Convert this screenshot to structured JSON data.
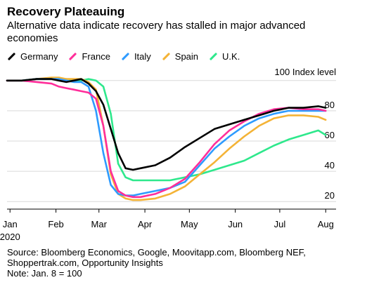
{
  "header": {
    "title": "Recovery Plateauing",
    "subtitle": "Alternative data indicate recovery has stalled in major advanced economies"
  },
  "notes": {
    "source_line1": "Source: Bloomberg Economics, Google, Moovitapp.com, Bloomberg NEF,",
    "source_line2": "Shoppertrak.com, Opportunity Insights",
    "note": "Note: Jan. 8 = 100"
  },
  "chart_data": {
    "type": "line",
    "title": "Recovery Plateauing",
    "y_unit_label": "100 Index level",
    "x_tick_labels": [
      "Jan",
      "Feb",
      "Mar",
      "Apr",
      "May",
      "Jun",
      "Jul",
      "Aug"
    ],
    "x_year_label": "2020",
    "x_range_days": [
      0,
      222
    ],
    "y_ticks": [
      20,
      40,
      60,
      80
    ],
    "ylim": [
      15,
      105
    ],
    "grid": true,
    "legend_position": "top-left",
    "series": [
      {
        "name": "Germany",
        "color": "#000000",
        "x": [
          0,
          10,
          20,
          30,
          35,
          40,
          45,
          50,
          55,
          60,
          65,
          70,
          75,
          80,
          85,
          90,
          100,
          110,
          120,
          130,
          140,
          150,
          160,
          170,
          180,
          190,
          200,
          210,
          215
        ],
        "y": [
          100,
          100,
          101,
          101,
          100,
          99,
          100,
          101,
          98,
          93,
          84,
          68,
          52,
          42,
          41,
          42,
          44,
          49,
          56,
          62,
          68,
          71,
          74,
          77,
          80,
          82,
          82,
          83,
          82
        ]
      },
      {
        "name": "France",
        "color": "#ff2e9a",
        "x": [
          0,
          10,
          20,
          30,
          35,
          40,
          45,
          50,
          55,
          60,
          65,
          70,
          75,
          80,
          85,
          90,
          100,
          110,
          120,
          130,
          140,
          150,
          160,
          170,
          180,
          190,
          200,
          210,
          215
        ],
        "y": [
          100,
          100,
          99,
          98,
          96,
          95,
          94,
          93,
          92,
          88,
          70,
          40,
          27,
          24,
          23,
          23,
          25,
          29,
          35,
          46,
          58,
          67,
          73,
          78,
          81,
          82,
          81,
          81,
          80
        ]
      },
      {
        "name": "Italy",
        "color": "#2e9bff",
        "x": [
          0,
          10,
          20,
          30,
          35,
          40,
          45,
          50,
          55,
          60,
          65,
          70,
          75,
          80,
          85,
          90,
          100,
          110,
          120,
          130,
          140,
          150,
          160,
          170,
          180,
          190,
          200,
          210,
          215
        ],
        "y": [
          100,
          100,
          101,
          101,
          101,
          100,
          99,
          99,
          96,
          80,
          52,
          31,
          25,
          24,
          24,
          25,
          27,
          29,
          33,
          44,
          55,
          63,
          70,
          75,
          78,
          80,
          80,
          80,
          80
        ]
      },
      {
        "name": "Spain",
        "color": "#f4b336",
        "x": [
          0,
          10,
          20,
          30,
          35,
          40,
          45,
          50,
          55,
          60,
          65,
          70,
          75,
          80,
          85,
          90,
          100,
          110,
          120,
          130,
          140,
          150,
          160,
          170,
          180,
          190,
          200,
          210,
          215
        ],
        "y": [
          100,
          100,
          101,
          102,
          102,
          101,
          101,
          101,
          99,
          94,
          70,
          38,
          25,
          22,
          21,
          21,
          22,
          25,
          30,
          38,
          46,
          55,
          63,
          70,
          75,
          77,
          77,
          76,
          74
        ]
      },
      {
        "name": "U.K.",
        "color": "#2ee88c",
        "x": [
          0,
          10,
          20,
          30,
          35,
          40,
          45,
          50,
          55,
          60,
          65,
          70,
          75,
          80,
          85,
          90,
          100,
          110,
          120,
          130,
          140,
          150,
          160,
          170,
          180,
          190,
          200,
          210,
          215
        ],
        "y": [
          100,
          100,
          101,
          101,
          101,
          101,
          100,
          100,
          101,
          100,
          96,
          78,
          45,
          36,
          34,
          34,
          34,
          34,
          36,
          38,
          41,
          44,
          47,
          52,
          57,
          61,
          64,
          67,
          64
        ]
      }
    ]
  }
}
